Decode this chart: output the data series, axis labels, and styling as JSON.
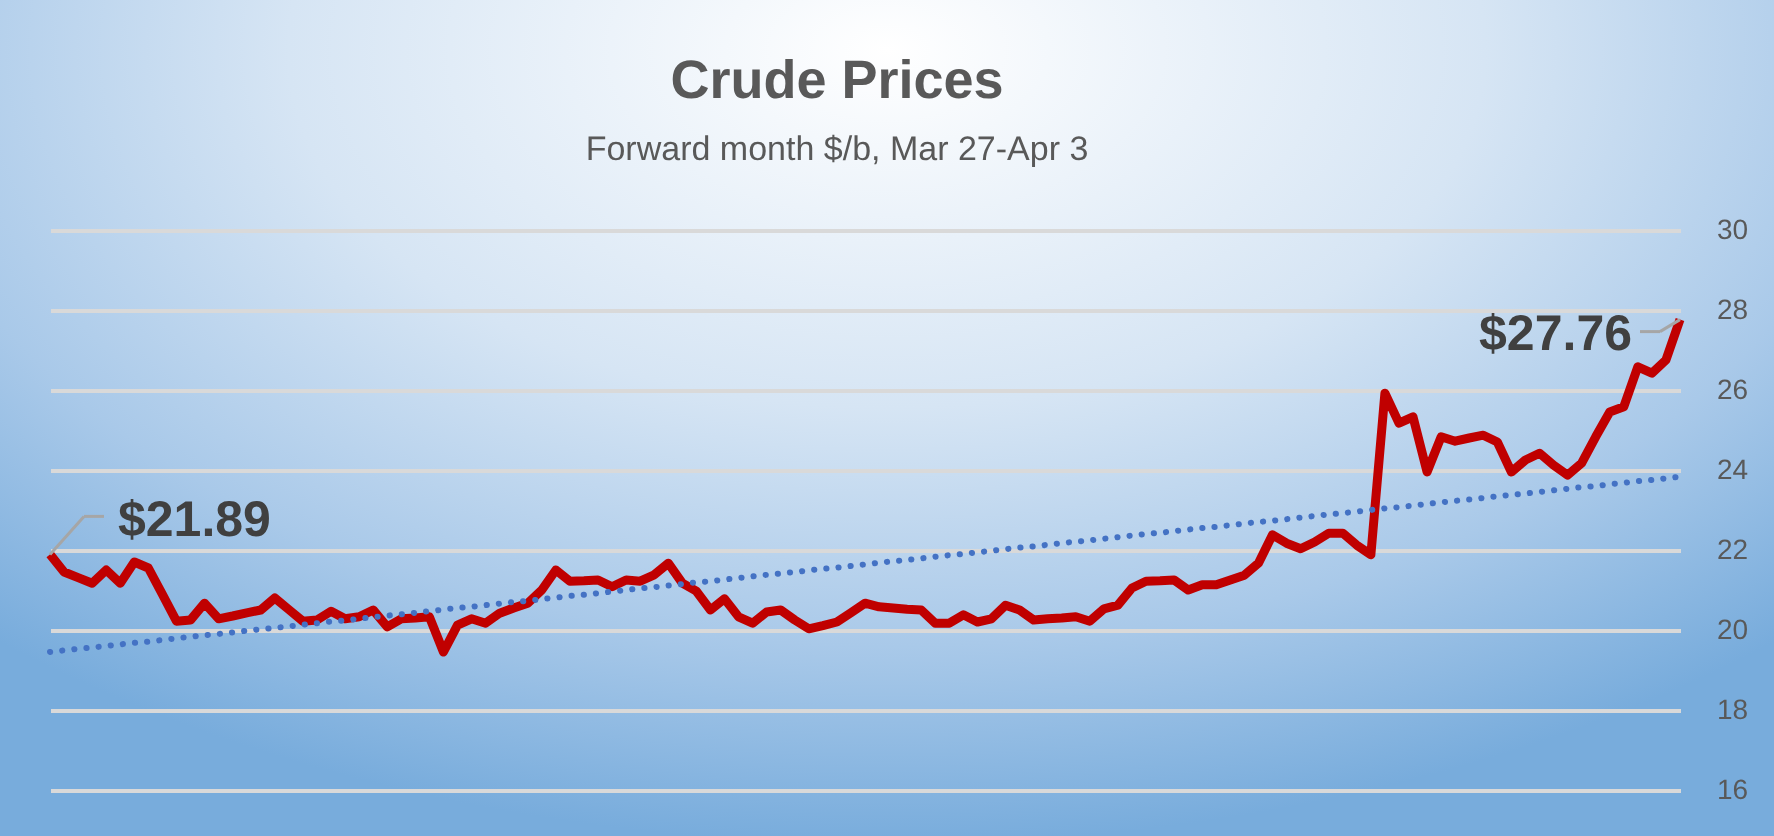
{
  "chart_data": {
    "type": "line",
    "title": "Crude Prices",
    "subtitle": "Forward month $/b, Mar 27-Apr 3",
    "categories": [
      null,
      null,
      null,
      null,
      null,
      null,
      null,
      null,
      null,
      null,
      null,
      null,
      null,
      null,
      null,
      null,
      null,
      null,
      null,
      null,
      null,
      null,
      null,
      null,
      null,
      null,
      null,
      null,
      null,
      null,
      null,
      null,
      null,
      null,
      null,
      null,
      null,
      null,
      null,
      null,
      null,
      null,
      null,
      null,
      null,
      null,
      null,
      null,
      null,
      null,
      null,
      null,
      null,
      null,
      null,
      null,
      null,
      null,
      null,
      null,
      null,
      null,
      null,
      null,
      null,
      null,
      null,
      null,
      null,
      null,
      null,
      null,
      null,
      null,
      null,
      null,
      null,
      null,
      null,
      null,
      null,
      null,
      null,
      null,
      null,
      null,
      null,
      null,
      null,
      null,
      null,
      null,
      null,
      null,
      null,
      null,
      null,
      null,
      null,
      null,
      null,
      null,
      null,
      null,
      null,
      null,
      null,
      null,
      null,
      null,
      null,
      null,
      null,
      null,
      null,
      null,
      null
    ],
    "series": [
      {
        "color": "#c00000",
        "line_style": "solid",
        "values": [
          21.89,
          21.45,
          21.31,
          21.17,
          21.5,
          21.17,
          21.7,
          21.55,
          20.89,
          20.22,
          20.25,
          20.67,
          20.28,
          20.35,
          20.43,
          20.5,
          20.8,
          20.51,
          20.22,
          20.25,
          20.47,
          20.28,
          20.33,
          20.5,
          20.08,
          20.28,
          20.3,
          20.33,
          19.45,
          20.12,
          20.28,
          20.17,
          20.42,
          20.55,
          20.67,
          21.0,
          21.5,
          21.22,
          21.23,
          21.25,
          21.08,
          21.25,
          21.22,
          21.38,
          21.67,
          21.17,
          20.97,
          20.5,
          20.78,
          20.33,
          20.17,
          20.45,
          20.5,
          20.25,
          20.03,
          20.11,
          20.2,
          20.43,
          20.67,
          20.58,
          20.55,
          20.52,
          20.5,
          20.17,
          20.17,
          20.38,
          20.2,
          20.28,
          20.62,
          20.5,
          20.25,
          20.28,
          20.3,
          20.33,
          20.22,
          20.53,
          20.62,
          21.05,
          21.22,
          21.23,
          21.25,
          21.0,
          21.13,
          21.13,
          21.25,
          21.37,
          21.67,
          22.38,
          22.17,
          22.03,
          22.2,
          22.42,
          22.42,
          22.12,
          21.88,
          25.92,
          25.17,
          25.33,
          23.95,
          24.83,
          24.72,
          24.8,
          24.87,
          24.7,
          23.95,
          24.25,
          24.42,
          24.12,
          23.87,
          24.17,
          24.83,
          25.45,
          25.58,
          26.58,
          26.42,
          26.75,
          27.76
        ],
        "value_labels": [
          "$21.89",
          null,
          null,
          null,
          null,
          null,
          null,
          null,
          null,
          null,
          null,
          null,
          null,
          null,
          null,
          null,
          null,
          null,
          null,
          null,
          null,
          null,
          null,
          null,
          null,
          null,
          null,
          null,
          null,
          null,
          null,
          null,
          null,
          null,
          null,
          null,
          null,
          null,
          null,
          null,
          null,
          null,
          null,
          null,
          null,
          null,
          null,
          null,
          null,
          null,
          null,
          null,
          null,
          null,
          null,
          null,
          null,
          null,
          null,
          null,
          null,
          null,
          null,
          null,
          null,
          null,
          null,
          null,
          null,
          null,
          null,
          null,
          null,
          null,
          null,
          null,
          null,
          null,
          null,
          null,
          null,
          null,
          null,
          null,
          null,
          null,
          null,
          null,
          null,
          null,
          null,
          null,
          null,
          null,
          null,
          null,
          null,
          null,
          null,
          null,
          null,
          null,
          null,
          null,
          null,
          null,
          null,
          null,
          null,
          null,
          null,
          null,
          null,
          null,
          null,
          null,
          "$27.76"
        ]
      },
      {
        "type": "line",
        "color": "#4472c4",
        "line_style": "dotted",
        "values": [
          19.45,
          19.49,
          19.53,
          19.56,
          19.6,
          19.64,
          19.68,
          19.71,
          19.75,
          19.79,
          19.83,
          19.87,
          19.9,
          19.94,
          19.98,
          20.02,
          20.05,
          20.09,
          20.13,
          20.17,
          20.21,
          20.24,
          20.28,
          20.32,
          20.36,
          20.39,
          20.43,
          20.47,
          20.51,
          20.55,
          20.58,
          20.62,
          20.66,
          20.7,
          20.73,
          20.77,
          20.81,
          20.85,
          20.88,
          20.92,
          20.96,
          21.0,
          21.04,
          21.07,
          21.11,
          21.15,
          21.19,
          21.22,
          21.26,
          21.3,
          21.34,
          21.38,
          21.41,
          21.45,
          21.49,
          21.53,
          21.56,
          21.6,
          21.64,
          21.68,
          21.72,
          21.75,
          21.79,
          21.83,
          21.87,
          21.9,
          21.94,
          21.98,
          22.02,
          22.06,
          22.09,
          22.13,
          22.17,
          22.21,
          22.24,
          22.28,
          22.32,
          22.36,
          22.4,
          22.43,
          22.47,
          22.51,
          22.55,
          22.58,
          22.62,
          22.66,
          22.7,
          22.73,
          22.77,
          22.81,
          22.85,
          22.89,
          22.92,
          22.96,
          23.0,
          23.04,
          23.07,
          23.11,
          23.15,
          23.19,
          23.23,
          23.26,
          23.3,
          23.34,
          23.38,
          23.41,
          23.45,
          23.49,
          23.53,
          23.57,
          23.6,
          23.64,
          23.68,
          23.72,
          23.75,
          23.79,
          23.83
        ]
      }
    ],
    "ylim": [
      16,
      30
    ],
    "yticks": [
      16,
      18,
      20,
      22,
      24,
      26,
      28,
      30
    ],
    "grid": "y"
  }
}
